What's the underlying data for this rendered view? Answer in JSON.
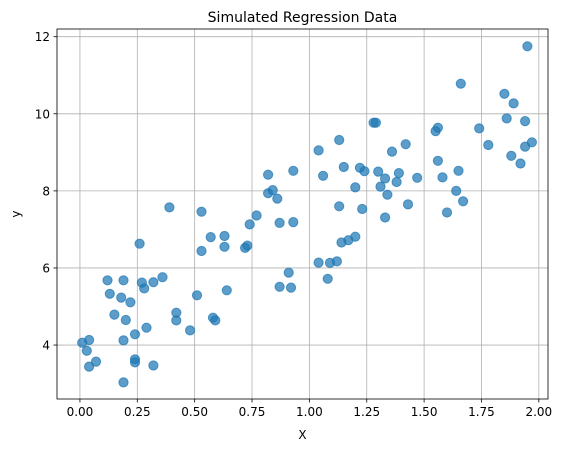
{
  "chart_data": {
    "type": "scatter",
    "title": "Simulated Regression Data",
    "xlabel": "X",
    "ylabel": "y",
    "xlim": [
      -0.1,
      2.04
    ],
    "ylim": [
      2.6,
      12.2
    ],
    "xticks": [
      0.0,
      0.25,
      0.5,
      0.75,
      1.0,
      1.25,
      1.5,
      1.75,
      2.0
    ],
    "xtick_labels": [
      "0.00",
      "0.25",
      "0.50",
      "0.75",
      "1.00",
      "1.25",
      "1.50",
      "1.75",
      "2.00"
    ],
    "yticks": [
      4,
      6,
      8,
      10,
      12
    ],
    "ytick_labels": [
      "4",
      "6",
      "8",
      "10",
      "12"
    ],
    "grid": true,
    "marker_color": "#1f77b4",
    "points": [
      [
        0.01,
        4.06
      ],
      [
        0.03,
        3.85
      ],
      [
        0.04,
        4.13
      ],
      [
        0.04,
        3.44
      ],
      [
        0.07,
        3.57
      ],
      [
        0.12,
        5.68
      ],
      [
        0.13,
        5.33
      ],
      [
        0.15,
        4.79
      ],
      [
        0.18,
        5.23
      ],
      [
        0.19,
        5.68
      ],
      [
        0.19,
        4.12
      ],
      [
        0.19,
        3.03
      ],
      [
        0.2,
        4.65
      ],
      [
        0.22,
        5.11
      ],
      [
        0.24,
        4.28
      ],
      [
        0.24,
        3.55
      ],
      [
        0.24,
        3.63
      ],
      [
        0.26,
        6.63
      ],
      [
        0.27,
        5.62
      ],
      [
        0.28,
        5.47
      ],
      [
        0.29,
        4.45
      ],
      [
        0.32,
        5.63
      ],
      [
        0.32,
        3.47
      ],
      [
        0.36,
        5.76
      ],
      [
        0.39,
        7.57
      ],
      [
        0.42,
        4.64
      ],
      [
        0.42,
        4.84
      ],
      [
        0.48,
        4.38
      ],
      [
        0.51,
        5.29
      ],
      [
        0.53,
        7.46
      ],
      [
        0.53,
        6.44
      ],
      [
        0.57,
        6.8
      ],
      [
        0.58,
        4.71
      ],
      [
        0.59,
        4.64
      ],
      [
        0.63,
        6.83
      ],
      [
        0.63,
        6.55
      ],
      [
        0.64,
        5.42
      ],
      [
        0.72,
        6.52
      ],
      [
        0.73,
        6.58
      ],
      [
        0.74,
        7.13
      ],
      [
        0.77,
        7.36
      ],
      [
        0.82,
        7.94
      ],
      [
        0.82,
        8.42
      ],
      [
        0.84,
        8.02
      ],
      [
        0.86,
        7.8
      ],
      [
        0.87,
        7.17
      ],
      [
        0.87,
        5.51
      ],
      [
        0.91,
        5.88
      ],
      [
        0.92,
        5.49
      ],
      [
        0.93,
        7.19
      ],
      [
        0.93,
        8.52
      ],
      [
        1.04,
        9.05
      ],
      [
        1.04,
        6.14
      ],
      [
        1.06,
        8.39
      ],
      [
        1.08,
        5.72
      ],
      [
        1.09,
        6.13
      ],
      [
        1.12,
        6.17
      ],
      [
        1.13,
        9.32
      ],
      [
        1.13,
        7.6
      ],
      [
        1.14,
        6.66
      ],
      [
        1.15,
        8.62
      ],
      [
        1.17,
        6.72
      ],
      [
        1.2,
        8.09
      ],
      [
        1.2,
        6.81
      ],
      [
        1.22,
        8.6
      ],
      [
        1.23,
        7.53
      ],
      [
        1.24,
        8.51
      ],
      [
        1.28,
        9.77
      ],
      [
        1.29,
        9.77
      ],
      [
        1.3,
        8.5
      ],
      [
        1.31,
        8.11
      ],
      [
        1.33,
        8.32
      ],
      [
        1.33,
        7.31
      ],
      [
        1.34,
        7.9
      ],
      [
        1.36,
        9.02
      ],
      [
        1.38,
        8.23
      ],
      [
        1.39,
        8.46
      ],
      [
        1.42,
        9.21
      ],
      [
        1.43,
        7.65
      ],
      [
        1.47,
        8.34
      ],
      [
        1.55,
        9.55
      ],
      [
        1.56,
        9.64
      ],
      [
        1.56,
        8.78
      ],
      [
        1.58,
        8.35
      ],
      [
        1.6,
        7.44
      ],
      [
        1.64,
        8.0
      ],
      [
        1.65,
        8.52
      ],
      [
        1.66,
        10.78
      ],
      [
        1.67,
        7.73
      ],
      [
        1.74,
        9.62
      ],
      [
        1.78,
        9.19
      ],
      [
        1.85,
        10.52
      ],
      [
        1.86,
        9.88
      ],
      [
        1.88,
        8.91
      ],
      [
        1.89,
        10.27
      ],
      [
        1.92,
        8.71
      ],
      [
        1.94,
        9.81
      ],
      [
        1.94,
        9.15
      ],
      [
        1.95,
        11.75
      ],
      [
        1.97,
        9.26
      ]
    ]
  }
}
